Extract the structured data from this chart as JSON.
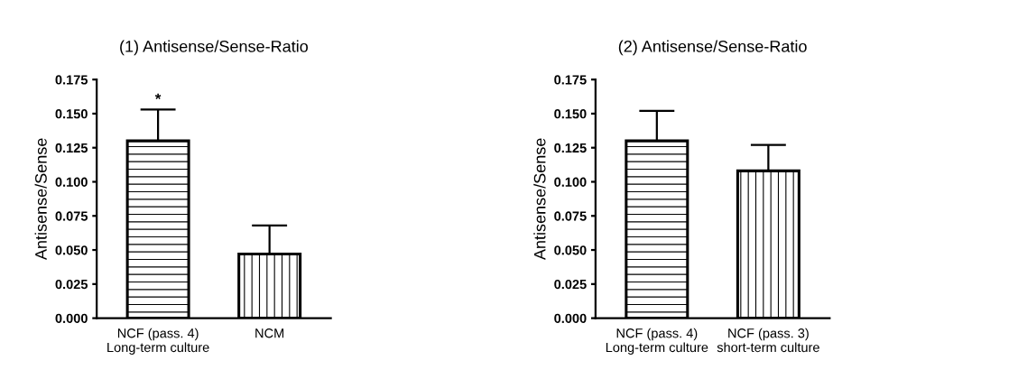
{
  "chart_data": [
    {
      "type": "bar",
      "title": "(1) Antisense/Sense-Ratio",
      "ylabel": "Antisense/Sense",
      "categories": [
        "NCF (pass. 4)\nLong-term culture",
        "NCM"
      ],
      "values": [
        0.13,
        0.047
      ],
      "errors": [
        0.023,
        0.021
      ],
      "color": "#000000",
      "ylim": [
        0,
        0.175
      ],
      "yticks": [
        {
          "value": 0,
          "label": "0.000"
        },
        {
          "value": 0.025,
          "label": "0.025"
        },
        {
          "value": 0.05,
          "label": "0.050"
        },
        {
          "value": 0.075,
          "label": "0.075"
        },
        {
          "value": 0.1,
          "label": "0.100"
        },
        {
          "value": 0.125,
          "label": "0.125"
        },
        {
          "value": 0.15,
          "label": "0.150"
        },
        {
          "value": 0.175,
          "label": "0.175"
        }
      ],
      "grid": false,
      "annotations": [
        {
          "text": "*",
          "x": "NCF (pass. 4)\nLong-term culture",
          "y": 0.153
        }
      ]
    },
    {
      "type": "bar",
      "title": "(2) Antisense/Sense-Ratio",
      "ylabel": "Antisense/Sense",
      "categories": [
        "NCF (pass. 4)\nLong-term culture",
        "NCF (pass. 3)\nshort-term culture"
      ],
      "values": [
        0.13,
        0.108
      ],
      "errors": [
        0.022,
        0.019
      ],
      "color": "#000000",
      "ylim": [
        0,
        0.175
      ],
      "yticks": [
        {
          "value": 0,
          "label": "0.000"
        },
        {
          "value": 0.025,
          "label": "0.025"
        },
        {
          "value": 0.05,
          "label": "0.050"
        },
        {
          "value": 0.075,
          "label": "0.075"
        },
        {
          "value": 0.1,
          "label": "0.100"
        },
        {
          "value": 0.125,
          "label": "0.125"
        },
        {
          "value": 0.15,
          "label": "0.150"
        },
        {
          "value": 0.175,
          "label": "0.175"
        }
      ],
      "grid": false
    }
  ]
}
